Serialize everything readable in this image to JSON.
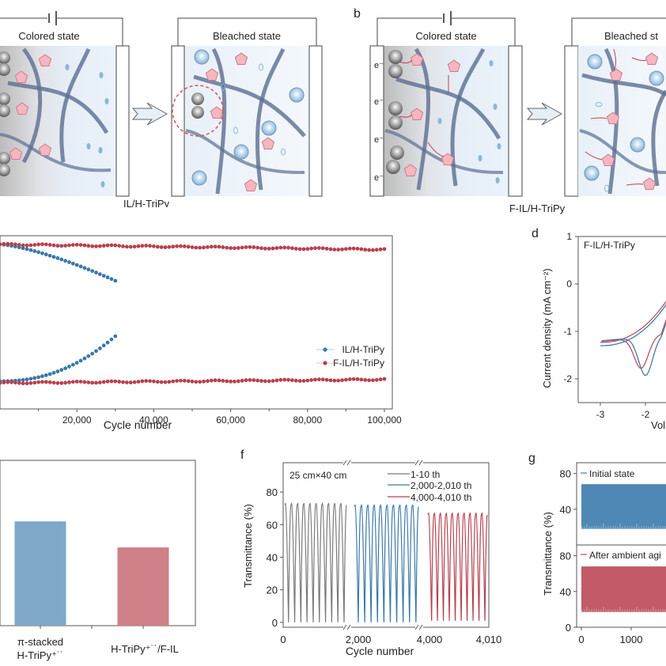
{
  "panel_labels": {
    "b": "b",
    "d": "d",
    "f": "f",
    "g": "g"
  },
  "panel_a": {
    "colored_label": "Colored state",
    "bleached_label": "Bleached state",
    "caption": "IL/H-TriPy"
  },
  "panel_b": {
    "colored_label": "Colored state",
    "bleached_label": "Bleached st",
    "caption": "F-IL/H-TriPy",
    "electrons": [
      "e⁻",
      "e⁻",
      "e⁻",
      "e⁻"
    ]
  },
  "colors": {
    "blue": "#3a78a8",
    "red": "#b8404e",
    "gray": "#7a7a7a",
    "bar_blue": "#7fa8c8",
    "bar_red": "#cf8088",
    "g_blue": "#4f88b5",
    "g_red": "#c25a67"
  },
  "chart_data": [
    {
      "id": "c",
      "type": "scatter",
      "xlabel": "Cycle number",
      "xlim": [
        0,
        100000
      ],
      "xticks": [
        "20,000",
        "40,000",
        "60,000",
        "80,000",
        "100,000"
      ],
      "xtick_values": [
        20000,
        40000,
        60000,
        80000,
        100000
      ],
      "legend": {
        "position": "right",
        "entries": [
          "IL/H-TriPy",
          "F-IL/H-TriPy"
        ]
      },
      "series": [
        {
          "name": "IL/H-TriPy upper",
          "x_end": 30000,
          "y_start": 0.95,
          "y_end": 0.74,
          "color": "blue"
        },
        {
          "name": "IL/H-TriPy lower",
          "x_end": 30000,
          "y_start": 0.16,
          "y_end": 0.42,
          "color": "blue"
        },
        {
          "name": "F-IL/H-TriPy upper",
          "x_end": 100000,
          "y_start": 0.95,
          "y_end": 0.92,
          "color": "red"
        },
        {
          "name": "F-IL/H-TriPy lower",
          "x_end": 100000,
          "y_start": 0.15,
          "y_end": 0.17,
          "color": "red"
        }
      ]
    },
    {
      "id": "d",
      "type": "line",
      "annotation": "F-IL/H-TriPy",
      "ylabel": "Current density (mA cm⁻²)",
      "xlabel": "Vol",
      "ylim": [
        -2.5,
        1
      ],
      "yticks": [
        "1",
        "0",
        "-1",
        "-2"
      ],
      "ytick_values": [
        1,
        0,
        -1,
        -2
      ],
      "xticks": [
        "-3",
        "-2"
      ],
      "xtick_values": [
        -3,
        -2
      ],
      "series": [
        {
          "name": "red",
          "peak_x": -2.1,
          "peak_y": -1.78
        },
        {
          "name": "blue",
          "peak_x": -2.0,
          "peak_y": -1.93
        }
      ]
    },
    {
      "id": "e",
      "type": "bar",
      "categories": [
        "π-stacked\nH-TriPy⁺˙˙",
        "H-TriPy⁺˙˙/F-IL"
      ],
      "category_line1": [
        "π-stacked",
        "H-TriPy⁺˙˙/F-IL"
      ],
      "category_line2": [
        "H-TriPy⁺˙˙",
        ""
      ],
      "values": [
        0.76,
        0.57
      ],
      "ylim": [
        0,
        1
      ]
    },
    {
      "id": "f",
      "type": "line",
      "annotation": "25 cm×40 cm",
      "ylabel": "Transmittance (%)",
      "xlabel": "Cycle number",
      "ylim": [
        -3,
        98
      ],
      "yticks": [
        "0",
        "20",
        "40",
        "60",
        "80"
      ],
      "ytick_values": [
        0,
        20,
        40,
        60,
        80
      ],
      "xticks": [
        "0",
        "2,000",
        "4,000",
        "4,010"
      ],
      "legend": {
        "position": "top-right",
        "entries": [
          "1-10 th",
          "2,000-2,010 th",
          "4,000-4,010 th"
        ]
      },
      "series": [
        {
          "name": "1-10 th",
          "max": 72,
          "min": 0,
          "cycles": 10,
          "color": "gray"
        },
        {
          "name": "2,000-2,010 th",
          "max": 71,
          "min": 0,
          "cycles": 10,
          "color": "blue"
        },
        {
          "name": "4,000-4,010 th",
          "max": 66,
          "min": 1,
          "cycles": 10,
          "color": "red"
        }
      ]
    },
    {
      "id": "g",
      "type": "area",
      "ylabel": "Transmittance (%)",
      "xticks": [
        "0",
        "1000"
      ],
      "panels": [
        {
          "legend": "Initial state",
          "yticks": [
            "80",
            "40"
          ],
          "max": 68,
          "min": 18,
          "color": "g_blue"
        },
        {
          "legend": "After ambient agi",
          "yticks": [
            "80",
            "40",
            "0"
          ],
          "max": 68,
          "min": 17,
          "color": "g_red"
        }
      ]
    }
  ]
}
